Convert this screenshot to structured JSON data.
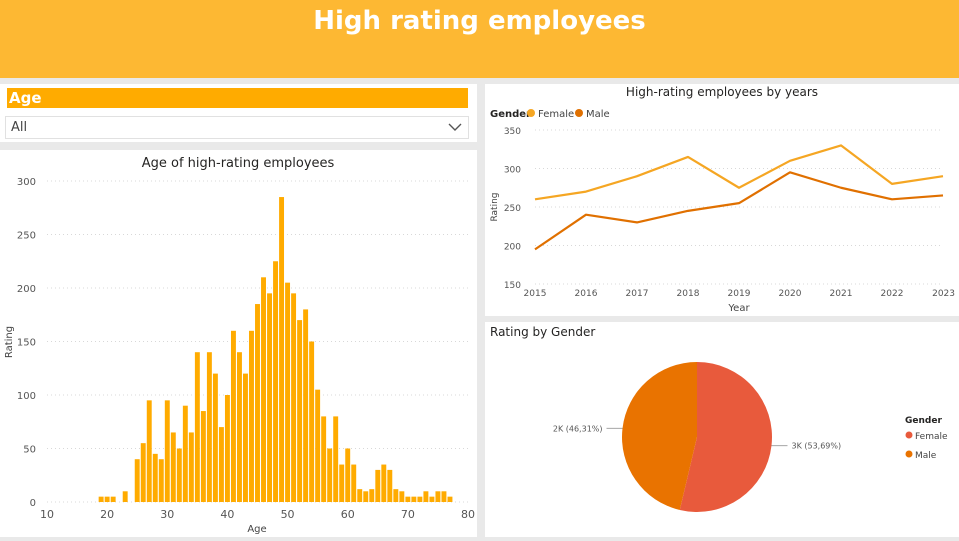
{
  "header": {
    "title": "High rating employees"
  },
  "slicer": {
    "title": "Age",
    "selected": "All",
    "icon": "chevron-down-icon"
  },
  "colors": {
    "header": "#FDB833",
    "accent": "#FFAB00",
    "female": "#F5A623",
    "male": "#E07000",
    "pie_female": "#E85A3C",
    "pie_male": "#E97300"
  },
  "chart_data": [
    {
      "type": "bar",
      "title": "Age of high-rating employees",
      "xlabel": "Age",
      "ylabel": "Rating",
      "xlim": [
        10,
        80
      ],
      "ylim": [
        0,
        300
      ],
      "xticks": [
        10,
        20,
        30,
        40,
        50,
        60,
        70,
        80
      ],
      "yticks": [
        0,
        50,
        100,
        150,
        200,
        250,
        300
      ],
      "grid": true,
      "x": [
        19,
        20,
        21,
        23,
        25,
        26,
        27,
        28,
        29,
        30,
        31,
        32,
        33,
        34,
        35,
        36,
        37,
        38,
        39,
        40,
        41,
        42,
        43,
        44,
        45,
        46,
        47,
        48,
        49,
        50,
        51,
        52,
        53,
        54,
        55,
        56,
        57,
        58,
        59,
        60,
        61,
        62,
        63,
        64,
        65,
        66,
        67,
        68,
        69,
        70,
        71,
        72,
        73,
        74,
        75,
        76,
        77
      ],
      "values": [
        5,
        5,
        5,
        10,
        40,
        55,
        95,
        45,
        40,
        95,
        65,
        50,
        90,
        65,
        140,
        85,
        140,
        120,
        70,
        100,
        160,
        140,
        120,
        160,
        185,
        210,
        195,
        225,
        285,
        205,
        195,
        170,
        180,
        150,
        105,
        80,
        50,
        80,
        35,
        50,
        35,
        12,
        10,
        12,
        30,
        35,
        30,
        12,
        10,
        5,
        5,
        5,
        10,
        5,
        10,
        10,
        5
      ]
    },
    {
      "type": "line",
      "title": "High-rating employees by years",
      "xlabel": "Year",
      "ylabel": "Rating",
      "legend_title": "Gender",
      "legend": "top-left",
      "categories": [
        "2015",
        "2016",
        "2017",
        "2018",
        "2019",
        "2020",
        "2021",
        "2022",
        "2023"
      ],
      "ylim": [
        150,
        350
      ],
      "yticks": [
        150,
        200,
        250,
        300,
        350
      ],
      "series": [
        {
          "name": "Female",
          "values": [
            260,
            270,
            290,
            315,
            275,
            310,
            330,
            280,
            290
          ]
        },
        {
          "name": "Male",
          "values": [
            195,
            240,
            230,
            245,
            255,
            295,
            275,
            260,
            265
          ]
        }
      ]
    },
    {
      "type": "pie",
      "title": "Rating by Gender",
      "legend_title": "Gender",
      "legend": "right",
      "labels": [
        "Female",
        "Male"
      ],
      "values": [
        53.69,
        46.31
      ],
      "data_labels": [
        "3K (53,69%)",
        "2K (46,31%)"
      ]
    }
  ]
}
